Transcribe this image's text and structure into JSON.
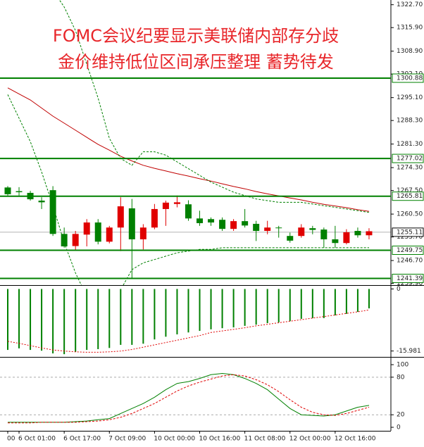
{
  "chart_data": [
    {
      "type": "candlestick",
      "title": "FOMC会议纪要显示美联储内部存分歧",
      "subtitle": "金价维持低位区间承压整理  蓄势待发",
      "title_color": "#e8262a",
      "ylim": [
        1239.4,
        1324.1
      ],
      "yticks": [
        {
          "value": 1322.7,
          "label": "1322.70"
        },
        {
          "value": 1315.9,
          "label": "1315.90"
        },
        {
          "value": 1308.9,
          "label": "1308.90"
        },
        {
          "value": 1302.1,
          "label": "1302.10"
        },
        {
          "value": 1295.1,
          "label": "1295.10"
        },
        {
          "value": 1288.3,
          "label": "1288.30"
        },
        {
          "value": 1281.3,
          "label": "1281.30"
        },
        {
          "value": 1274.3,
          "label": "1274.30"
        },
        {
          "value": 1267.5,
          "label": "1267.50"
        },
        {
          "value": 1260.5,
          "label": "1260.50"
        },
        {
          "value": 1253.7,
          "label": "1253.70"
        },
        {
          "value": 1246.7,
          "label": "1246.70"
        },
        {
          "value": 1239.9,
          "label": "1239.90"
        }
      ],
      "open": [
        1268.4,
        1267.3,
        1266.8,
        1264.5,
        1267.6,
        1254.6,
        1251.0,
        1254.4,
        1258.0,
        1252.3,
        1256.5,
        1262.2,
        1253.0,
        1256.5,
        1262.0,
        1263.5,
        1263.4,
        1259.2,
        1259.0,
        1258.8,
        1256.1,
        1258.4,
        1257.6,
        1255.5,
        1256.5,
        1254.0,
        1254.0,
        1256.3,
        1255.9,
        1253.0,
        1251.9,
        1255.5,
        1254.2
      ],
      "high": [
        1268.8,
        1268.5,
        1267.4,
        1265.5,
        1268.8,
        1256.5,
        1255.5,
        1259.0,
        1259.0,
        1257.0,
        1265.5,
        1265.0,
        1257.5,
        1263.5,
        1264.5,
        1266.0,
        1264.6,
        1261.5,
        1259.5,
        1259.5,
        1259.0,
        1262.0,
        1258.5,
        1258.5,
        1257.0,
        1255.0,
        1257.5,
        1257.0,
        1256.5,
        1257.0,
        1256.0,
        1256.5,
        1256.3
      ],
      "low": [
        1266.0,
        1266.0,
        1264.5,
        1262.0,
        1254.0,
        1250.5,
        1249.8,
        1250.9,
        1251.5,
        1251.8,
        1249.5,
        1241.5,
        1250.0,
        1256.0,
        1257.0,
        1262.5,
        1258.5,
        1257.0,
        1257.0,
        1255.5,
        1255.5,
        1256.5,
        1252.5,
        1254.5,
        1253.5,
        1252.0,
        1253.5,
        1254.5,
        1250.5,
        1250.5,
        1251.5,
        1253.5,
        1253.0
      ],
      "close": [
        1266.4,
        1267.0,
        1264.9,
        1264.0,
        1254.6,
        1250.9,
        1254.6,
        1258.0,
        1252.3,
        1256.5,
        1262.8,
        1253.0,
        1256.5,
        1262.0,
        1263.9,
        1264.0,
        1259.2,
        1257.8,
        1258.0,
        1256.1,
        1258.4,
        1257.1,
        1255.5,
        1256.5,
        1256.3,
        1252.6,
        1256.5,
        1255.8,
        1253.0,
        1251.9,
        1255.1,
        1254.2,
        1255.4
      ],
      "up_color": "#e00000",
      "down_color": "#008000",
      "ma": [
        1298.0,
        1296.2,
        1294.4,
        1292.0,
        1289.6,
        1287.5,
        1285.4,
        1283.3,
        1281.2,
        1279.5,
        1277.7,
        1276.3,
        1275.0,
        1274.1,
        1273.3,
        1272.5,
        1271.8,
        1271.0,
        1270.3,
        1269.5,
        1268.7,
        1268.0,
        1267.2,
        1266.5,
        1265.9,
        1265.3,
        1264.7,
        1264.0,
        1263.4,
        1262.9,
        1262.4,
        1261.8,
        1261.3
      ],
      "ma_color": "#c00000",
      "band_upper": [
        1345.0,
        1340.0,
        1336.0,
        1332.0,
        1327.0,
        1322.0,
        1315.0,
        1305.0,
        1295.0,
        1283.0,
        1277.0,
        1275.0,
        1279.0,
        1279.0,
        1278.0,
        1276.0,
        1274.0,
        1272.0,
        1270.0,
        1268.5,
        1267.0,
        1266.0,
        1265.0,
        1264.5,
        1264.0,
        1264.0,
        1264.0,
        1263.5,
        1263.0,
        1262.5,
        1262.0,
        1261.5,
        1261.0
      ],
      "band_lower": [
        1296.0,
        1289.0,
        1282.0,
        1273.0,
        1263.0,
        1252.0,
        1243.0,
        1236.0,
        1232.0,
        1232.0,
        1238.0,
        1244.0,
        1246.0,
        1247.0,
        1248.0,
        1249.0,
        1249.5,
        1250.0,
        1250.0,
        1250.5,
        1250.5,
        1250.5,
        1250.5,
        1250.5,
        1250.5,
        1250.5,
        1250.5,
        1250.5,
        1250.5,
        1250.5,
        1250.5,
        1250.5,
        1250.5
      ],
      "band_color": "#008000",
      "levels": [
        1300.88,
        1277.02,
        1265.81,
        1249.75,
        1241.39
      ],
      "level_color": "#008000",
      "last_price": 1255.11
    },
    {
      "type": "bar",
      "values": [
        -15.7,
        -15.3,
        -15.7,
        -15.9,
        -16.6,
        -16.8,
        -16.2,
        -15.7,
        -15.5,
        -15.2,
        -14.4,
        -14.4,
        -14.1,
        -13.0,
        -12.3,
        -11.7,
        -11.2,
        -10.8,
        -10.4,
        -10.1,
        -9.9,
        -9.5,
        -9.2,
        -8.8,
        -8.6,
        -8.3,
        -7.7,
        -7.5,
        -7.5,
        -6.8,
        -6.4,
        -5.9,
        -5.0
      ],
      "color": "#008000",
      "signal": [
        -13.5,
        -14.0,
        -14.6,
        -15.2,
        -15.7,
        -16.0,
        -16.2,
        -16.3,
        -16.3,
        -16.2,
        -16.0,
        -15.6,
        -15.0,
        -14.4,
        -13.8,
        -13.2,
        -12.6,
        -12.0,
        -11.2,
        -10.8,
        -10.4,
        -10.0,
        -9.5,
        -9.1,
        -8.7,
        -8.3,
        -7.9,
        -7.5,
        -7.1,
        -6.7,
        -6.3,
        -5.9,
        -5.4
      ],
      "signal_color": "#e00000",
      "ylim": [
        -17.5,
        1.0
      ],
      "yticks": [
        0,
        -15.981
      ]
    },
    {
      "type": "line",
      "series": [
        {
          "color": "#008000",
          "values": [
            8,
            8,
            8,
            8,
            8,
            8,
            9,
            10,
            12,
            14,
            22,
            30,
            38,
            48,
            60,
            70,
            73,
            78,
            84,
            86,
            84,
            78,
            70,
            60,
            45,
            30,
            20,
            19,
            18,
            20,
            26,
            32,
            35
          ]
        },
        {
          "color": "#e00000",
          "dashed": true,
          "values": [
            7,
            7,
            7,
            8,
            8,
            8,
            8,
            9,
            10,
            12,
            16,
            22,
            30,
            38,
            48,
            58,
            66,
            72,
            77,
            82,
            84,
            82,
            76,
            68,
            57,
            44,
            32,
            24,
            20,
            19,
            22,
            27,
            32
          ]
        }
      ],
      "ylim": [
        -5.6,
        112.4
      ],
      "yticks": [
        0,
        20,
        80,
        100
      ],
      "guides": [
        20,
        80
      ],
      "categories": [
        "00",
        "6 Oct 01:00",
        null,
        null,
        null,
        "6 Oct 17:00",
        null,
        null,
        null,
        "7 Oct 09:00",
        null,
        null,
        null,
        "10 Oct 00:00",
        null,
        null,
        null,
        "10 Oct 16:00",
        null,
        null,
        null,
        "11 Oct 08:00",
        null,
        null,
        null,
        "12 Oct 00:00",
        null,
        null,
        null,
        "12 Oct 16:00",
        null,
        null,
        null
      ]
    }
  ]
}
